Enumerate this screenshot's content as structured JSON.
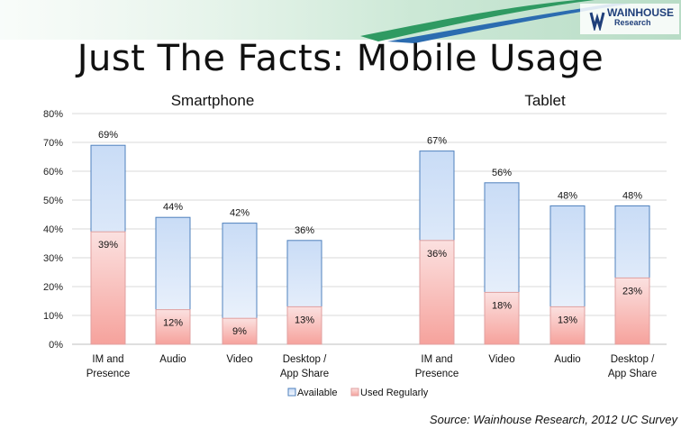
{
  "slide": {
    "title": "Just The Facts: Mobile Usage",
    "logo": "WAINHOUSE Research",
    "source": "Source: Wainhouse Research, 2012 UC Survey"
  },
  "colors": {
    "available_top": "#cfe0f7",
    "available_bottom": "#eef4fc",
    "available_stroke": "#4f81bd",
    "used_top": "#f7c6c4",
    "used_bottom": "#f9a09a",
    "used_stroke": "#e0a0a0",
    "grid": "#d9d9d9",
    "banner_green": "#3aa66a",
    "banner_blue": "#2b6cb0"
  },
  "chart_data": [
    {
      "type": "bar",
      "title": "Smartphone",
      "categories": [
        "IM and\nPresence",
        "Audio",
        "Video",
        "Desktop /\nApp Share"
      ],
      "series": [
        {
          "name": "Available",
          "values": [
            69,
            44,
            42,
            36
          ],
          "labels": [
            "69%",
            "44%",
            "42%",
            "36%"
          ]
        },
        {
          "name": "Used Regularly",
          "values": [
            39,
            12,
            9,
            13
          ],
          "labels": [
            "39%",
            "12%",
            "9%",
            "13%"
          ]
        }
      ],
      "ylim": [
        0,
        80
      ],
      "yticks": [
        "0%",
        "10%",
        "20%",
        "30%",
        "40%",
        "50%",
        "60%",
        "70%",
        "80%"
      ],
      "grid": true,
      "legend": "bottom"
    },
    {
      "type": "bar",
      "title": "Tablet",
      "categories": [
        "IM and\nPresence",
        "Video",
        "Audio",
        "Desktop /\nApp Share"
      ],
      "series": [
        {
          "name": "Available",
          "values": [
            67,
            56,
            48,
            48
          ],
          "labels": [
            "67%",
            "56%",
            "48%",
            "48%"
          ]
        },
        {
          "name": "Used Regularly",
          "values": [
            36,
            18,
            13,
            23
          ],
          "labels": [
            "36%",
            "18%",
            "13%",
            "23%"
          ]
        }
      ],
      "ylim": [
        0,
        80
      ],
      "grid": true,
      "legend": "bottom"
    }
  ]
}
